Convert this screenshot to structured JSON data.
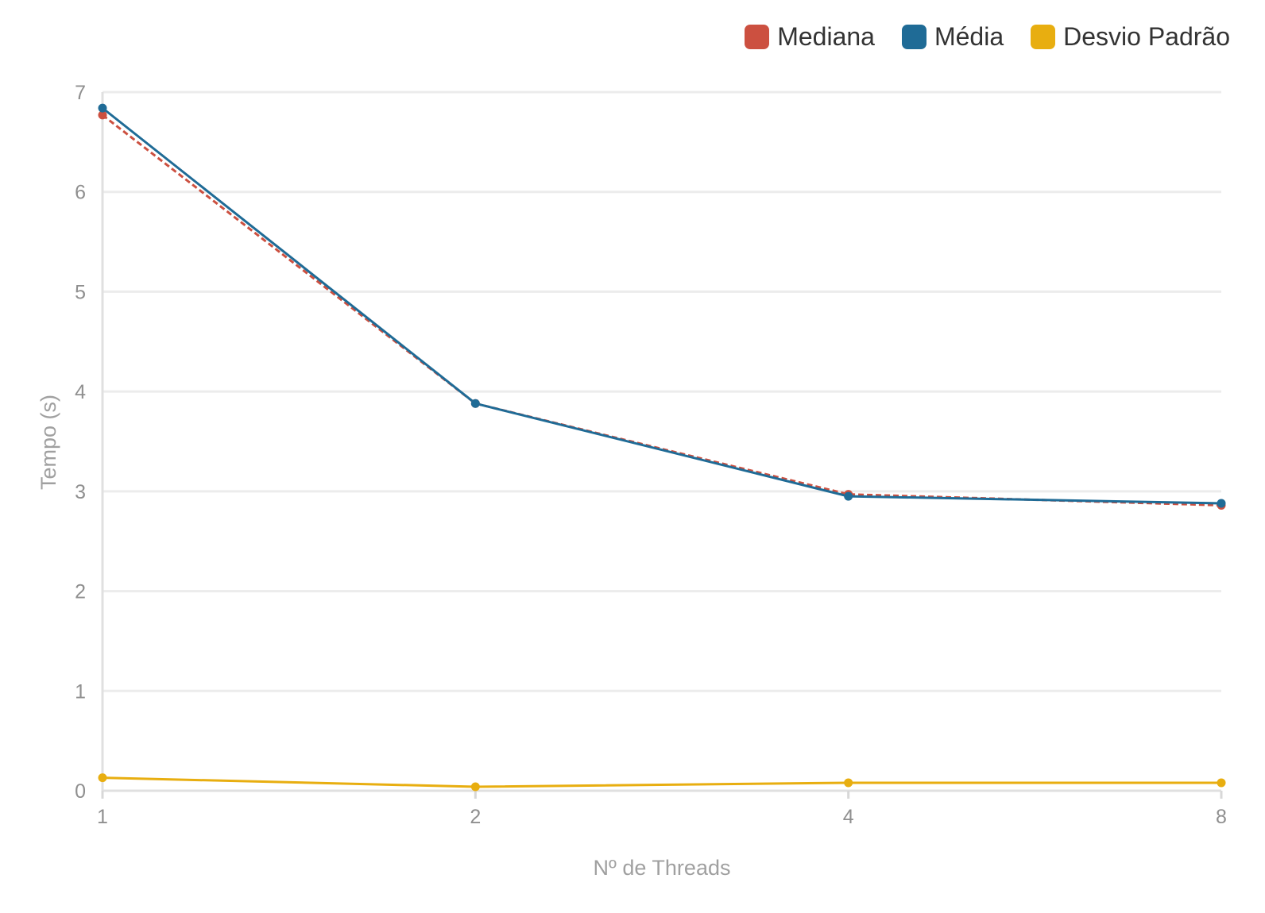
{
  "chart_data": {
    "type": "line",
    "x": [
      1,
      2,
      4,
      8
    ],
    "xlabel": "Nº de Threads",
    "ylabel": "Tempo (s)",
    "ylim": [
      0,
      7
    ],
    "yticks": [
      0,
      1,
      2,
      3,
      4,
      5,
      6,
      7
    ],
    "xticks": [
      1,
      2,
      4,
      8
    ],
    "xscale": "log2",
    "grid": "horizontal",
    "legend_position": "top-right",
    "series": [
      {
        "name": "Mediana",
        "values": [
          6.77,
          3.88,
          2.97,
          2.86
        ],
        "color": "#cc5040",
        "style": "dashed"
      },
      {
        "name": "Média",
        "values": [
          6.84,
          3.88,
          2.95,
          2.88
        ],
        "color": "#1f6b96",
        "style": "solid"
      },
      {
        "name": "Desvio Padrão",
        "values": [
          0.13,
          0.04,
          0.08,
          0.08
        ],
        "color": "#e8ae10",
        "style": "solid"
      }
    ]
  }
}
